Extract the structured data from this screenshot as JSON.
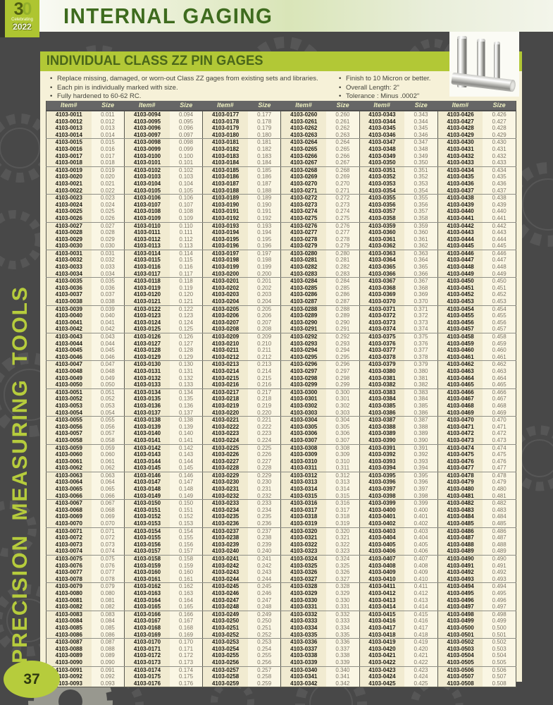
{
  "header": {
    "title": "INTERNAL GAGING",
    "logo": {
      "number_3": "3",
      "number_0": "0",
      "caption": "Celebrating",
      "year": "2022"
    }
  },
  "sidebar": {
    "vertical_text": "PRECISION MEASURING TOOLS",
    "page_number": "37"
  },
  "section": {
    "title": "INDIVIDUAL CLASS ZZ PIN GAGES",
    "bullets_left": [
      "Replace missing, damaged, or worn-out Class ZZ gages from existing sets and libraries.",
      "Each pin is individually marked with size.",
      "Fully hardened to 60-62 RC."
    ],
    "bullets_right": [
      "Finish to 10 Micron or better.",
      "Overall Length: 2\"",
      "Tolerance : Minus .0002\""
    ]
  },
  "colors": {
    "accent_green": "#b2c836",
    "dark_green_text": "#4a661a",
    "title_green": "#3e6b1e",
    "page_background": "#484848",
    "panel_background": "#f6f1d8",
    "table_header_gray": "#666666",
    "item_cell": "#f1ebd1",
    "size_cell": "#faf6e4",
    "sidebar_green": "#b6cc3c"
  },
  "table": {
    "item_header": "Item#",
    "size_header": "Size",
    "group_size": 4,
    "columns": [
      [
        "4103-0011|0.011",
        "4103-0012|0.012",
        "4103-0013|0.013",
        "4103-0014|0.014",
        "4103-0015|0.015",
        "4103-0016|0.016",
        "4103-0017|0.017",
        "4103-0018|0.018",
        "4103-0019|0.019",
        "4103-0020|0.020",
        "4103-0021|0.021",
        "4103-0022|0.022",
        "4103-0023|0.023",
        "4103-0024|0.024",
        "4103-0025|0.025",
        "4103-0026|0.026",
        "4103-0027|0.027",
        "4103-0028|0.028",
        "4103-0029|0.029",
        "4103-0030|0.030",
        "4103-0031|0.031",
        "4103-0032|0.032",
        "4103-0033|0.033",
        "4103-0034|0.034",
        "4103-0035|0.035",
        "4103-0036|0.036",
        "4103-0037|0.037",
        "4103-0038|0.038",
        "4103-0039|0.039",
        "4103-0040|0.040",
        "4103-0041|0.041",
        "4103-0042|0.042",
        "4103-0043|0.043",
        "4103-0044|0.044",
        "4103-0045|0.045",
        "4103-0046|0.046",
        "4103-0047|0.047",
        "4103-0048|0.048",
        "4103-0049|0.049",
        "4103-0050|0.050",
        "4103-0051|0.051",
        "4103-0052|0.052",
        "4103-0053|0.053",
        "4103-0054|0.054",
        "4103-0055|0.055",
        "4103-0056|0.056",
        "4103-0057|0.057",
        "4103-0058|0.058",
        "4103-0059|0.059",
        "4103-0060|0.060",
        "4103-0061|0.061",
        "4103-0062|0.062",
        "4103-0063|0.063",
        "4103-0064|0.064",
        "4103-0065|0.065",
        "4103-0066|0.066",
        "4103-0067|0.067",
        "4103-0068|0.068",
        "4103-0069|0.069",
        "4103-0070|0.070",
        "4103-0071|0.071",
        "4103-0072|0.072",
        "4103-0073|0.073",
        "4103-0074|0.074",
        "4103-0075|0.075",
        "4103-0076|0.076",
        "4103-0077|0.077",
        "4103-0078|0.078",
        "4103-0079|0.079",
        "4103-0080|0.080",
        "4103-0081|0.081",
        "4103-0082|0.082",
        "4103-0083|0.083",
        "4103-0084|0.084",
        "4103-0085|0.085",
        "4103-0086|0.086",
        "4103-0087|0.087",
        "4103-0088|0.088",
        "4103-0089|0.089",
        "4103-0090|0.090",
        "4103-0091|0.091",
        "4103-0092|0.092",
        "4103-0093|0.093"
      ],
      [
        "4103-0094|0.094",
        "4103-0095|0.095",
        "4103-0096|0.096",
        "4103-0097|0.097",
        "4103-0098|0.098",
        "4103-0099|0.099",
        "4103-0100|0.100",
        "4103-0101|0.101",
        "4103-0102|0.102",
        "4103-0103|0.103",
        "4103-0104|0.104",
        "4103-0105|0.105",
        "4103-0106|0.106",
        "4103-0107|0.107",
        "4103-0108|0.108",
        "4103-0109|0.109",
        "4103-0110|0.110",
        "4103-0111|0.111",
        "4103-0112|0.112",
        "4103-0113|0.113",
        "4103-0114|0.114",
        "4103-0115|0.115",
        "4103-0116|0.116",
        "4103-0117|0.117",
        "4103-0118|0.118",
        "4103-0119|0.119",
        "4103-0120|0.120",
        "4103-0121|0.121",
        "4103-0122|0.122",
        "4103-0123|0.123",
        "4103-0124|0.124",
        "4103-0125|0.125",
        "4103-0126|0.126",
        "4103-0127|0.127",
        "4103-0128|0.128",
        "4103-0129|0.129",
        "4103-0130|0.130",
        "4103-0131|0.131",
        "4103-0132|0.132",
        "4103-0133|0.133",
        "4103-0134|0.134",
        "4103-0135|0.135",
        "4103-0136|0.136",
        "4103-0137|0.137",
        "4103-0138|0.138",
        "4103-0139|0.139",
        "4103-0140|0.140",
        "4103-0141|0.141",
        "4103-0142|0.142",
        "4103-0143|0.143",
        "4103-0144|0.144",
        "4103-0145|0.145",
        "4103-0146|0.146",
        "4103-0147|0.147",
        "4103-0148|0.148",
        "4103-0149|0.149",
        "4103-0150|0.150",
        "4103-0151|0.151",
        "4103-0152|0.152",
        "4103-0153|0.153",
        "4103-0154|0.154",
        "4103-0155|0.155",
        "4103-0156|0.156",
        "4103-0157|0.157",
        "4103-0158|0.158",
        "4103-0159|0.159",
        "4103-0160|0.160",
        "4103-0161|0.161",
        "4103-0162|0.162",
        "4103-0163|0.163",
        "4103-0164|0.164",
        "4103-0165|0.165",
        "4103-0166|0.166",
        "4103-0167|0.167",
        "4103-0168|0.168",
        "4103-0169|0.169",
        "4103-0170|0.170",
        "4103-0171|0.171",
        "4103-0172|0.172",
        "4103-0173|0.173",
        "4103-0174|0.174",
        "4103-0175|0.175",
        "4103-0176|0.176"
      ],
      [
        "4103-0177|0.177",
        "4103-0178|0.178",
        "4103-0179|0.179",
        "4103-0180|0.180",
        "4103-0181|0.181",
        "4103-0182|0.182",
        "4103-0183|0.183",
        "4103-0184|0.184",
        "4103-0185|0.185",
        "4103-0186|0.186",
        "4103-0187|0.187",
        "4103-0188|0.188",
        "4103-0189|0.189",
        "4103-0190|0.190",
        "4103-0191|0.191",
        "4103-0192|0.192",
        "4103-0193|0.193",
        "4103-0194|0.194",
        "4103-0195|0.195",
        "4103-0196|0.196",
        "4103-0197|0.197",
        "4103-0198|0.198",
        "4103-0199|0.199",
        "4103-0200|0.200",
        "4103-0201|0.201",
        "4103-0202|0.202",
        "4103-0203|0.203",
        "4103-0204|0.204",
        "4103-0205|0.205",
        "4103-0206|0.206",
        "4103-0207|0.207",
        "4103-0208|0.208",
        "4103-0209|0.209",
        "4103-0210|0.210",
        "4103-0211|0.211",
        "4103-0212|0.212",
        "4103-0213|0.213",
        "4103-0214|0.214",
        "4103-0215|0.215",
        "4103-0216|0.216",
        "4103-0217|0.217",
        "4103-0218|0.218",
        "4103-0219|0.219",
        "4103-0220|0.220",
        "4103-0221|0.221",
        "4103-0222|0.222",
        "4103-0223|0.223",
        "4103-0224|0.224",
        "4103-0225|0.225",
        "4103-0226|0.226",
        "4103-0227|0.227",
        "4103-0228|0.228",
        "4103-0229|0.229",
        "4103-0230|0.230",
        "4103-0231|0.231",
        "4103-0232|0.232",
        "4103-0233|0.233",
        "4103-0234|0.234",
        "4103-0235|0.235",
        "4103-0236|0.236",
        "4103-0237|0.237",
        "4103-0238|0.238",
        "4103-0239|0.239",
        "4103-0240|0.240",
        "4103-0241|0.241",
        "4103-0242|0.242",
        "4103-0243|0.243",
        "4103-0244|0.244",
        "4103-0245|0.245",
        "4103-0246|0.246",
        "4103-0247|0.247",
        "4103-0248|0.248",
        "4103-0249|0.249",
        "4103-0250|0.250",
        "4103-0251|0.251",
        "4103-0252|0.252",
        "4103-0253|0.253",
        "4103-0254|0.254",
        "4103-0255|0.255",
        "4103-0256|0.256",
        "4103-0257|0.257",
        "4103-0258|0.258",
        "4103-0259|0.259"
      ],
      [
        "4103-0260|0.260",
        "4103-0261|0.261",
        "4103-0262|0.262",
        "4103-0263|0.263",
        "4103-0264|0.264",
        "4103-0265|0.265",
        "4103-0266|0.266",
        "4103-0267|0.267",
        "4103-0268|0.268",
        "4103-0269|0.269",
        "4103-0270|0.270",
        "4103-0271|0.271",
        "4103-0272|0.272",
        "4103-0273|0.273",
        "4103-0274|0.274",
        "4103-0275|0.275",
        "4103-0276|0.276",
        "4103-0277|0.277",
        "4103-0278|0.278",
        "4103-0279|0.279",
        "4103-0280|0.280",
        "4103-0281|0.281",
        "4103-0282|0.282",
        "4103-0283|0.283",
        "4103-0284|0.284",
        "4103-0285|0.285",
        "4103-0286|0.286",
        "4103-0287|0.287",
        "4103-0288|0.288",
        "4103-0289|0.289",
        "4103-0290|0.290",
        "4103-0291|0.291",
        "4103-0292|0.292",
        "4103-0293|0.293",
        "4103-0294|0.294",
        "4103-0295|0.295",
        "4103-0296|0.296",
        "4103-0297|0.297",
        "4103-0298|0.298",
        "4103-0299|0.299",
        "4103-0300|0.300",
        "4103-0301|0.301",
        "4103-0302|0.302",
        "4103-0303|0.303",
        "4103-0304|0.304",
        "4103-0305|0.305",
        "4103-0306|0.306",
        "4103-0307|0.307",
        "4103-0308|0.308",
        "4103-0309|0.309",
        "4103-0310|0.310",
        "4103-0311|0.311",
        "4103-0312|0.312",
        "4103-0313|0.313",
        "4103-0314|0.314",
        "4103-0315|0.315",
        "4103-0316|0.316",
        "4103-0317|0.317",
        "4103-0318|0.318",
        "4103-0319|0.319",
        "4103-0320|0.320",
        "4103-0321|0.321",
        "4103-0322|0.322",
        "4103-0323|0.323",
        "4103-0324|0.324",
        "4103-0325|0.325",
        "4103-0326|0.326",
        "4103-0327|0.327",
        "4103-0328|0.328",
        "4103-0329|0.329",
        "4103-0330|0.330",
        "4103-0331|0.331",
        "4103-0332|0.332",
        "4103-0333|0.333",
        "4103-0334|0.334",
        "4103-0335|0.335",
        "4103-0336|0.336",
        "4103-0337|0.337",
        "4103-0338|0.338",
        "4103-0339|0.339",
        "4103-0340|0.340",
        "4103-0341|0.341",
        "4103-0342|0.342"
      ],
      [
        "4103-0343|0.343",
        "4103-0344|0.344",
        "4103-0345|0.345",
        "4103-0346|0.346",
        "4103-0347|0.347",
        "4103-0348|0.348",
        "4103-0349|0.349",
        "4103-0350|0.350",
        "4103-0351|0.351",
        "4103-0352|0.352",
        "4103-0353|0.353",
        "4103-0354|0.354",
        "4103-0355|0.355",
        "4103-0356|0.356",
        "4103-0357|0.357",
        "4103-0358|0.358",
        "4103-0359|0.359",
        "4103-0360|0.360",
        "4103-0361|0.361",
        "4103-0362|0.362",
        "4103-0363|0.363",
        "4103-0364|0.364",
        "4103-0365|0.365",
        "4103-0366|0.366",
        "4103-0367|0.367",
        "4103-0368|0.368",
        "4103-0369|0.369",
        "4103-0370|0.370",
        "4103-0371|0.371",
        "4103-0372|0.372",
        "4103-0373|0.373",
        "4103-0374|0.374",
        "4103-0375|0.375",
        "4103-0376|0.376",
        "4103-0377|0.377",
        "4103-0378|0.378",
        "4103-0379|0.379",
        "4103-0380|0.380",
        "4103-0381|0.381",
        "4103-0382|0.382",
        "4103-0383|0.383",
        "4103-0384|0.384",
        "4103-0385|0.385",
        "4103-0386|0.386",
        "4103-0387|0.387",
        "4103-0388|0.388",
        "4103-0389|0.389",
        "4103-0390|0.390",
        "4103-0391|0.391",
        "4103-0392|0.392",
        "4103-0393|0.393",
        "4103-0394|0.394",
        "4103-0395|0.395",
        "4103-0396|0.396",
        "4103-0397|0.397",
        "4103-0398|0.398",
        "4103-0399|0.399",
        "4103-0400|0.400",
        "4103-0401|0.401",
        "4103-0402|0.402",
        "4103-0403|0.403",
        "4103-0404|0.404",
        "4103-0405|0.405",
        "4103-0406|0.406",
        "4103-0407|0.407",
        "4103-0408|0.408",
        "4103-0409|0.409",
        "4103-0410|0.410",
        "4103-0411|0.411",
        "4103-0412|0.412",
        "4103-0413|0.413",
        "4103-0414|0.414",
        "4103-0415|0.415",
        "4103-0416|0.416",
        "4103-0417|0.417",
        "4103-0418|0.418",
        "4103-0419|0.419",
        "4103-0420|0.420",
        "4103-0421|0.421",
        "4103-0422|0.422",
        "4103-0423|0.423",
        "4103-0424|0.424",
        "4103-0425|0.425"
      ],
      [
        "4103-0426|0.426",
        "4103-0427|0.427",
        "4103-0428|0.428",
        "4103-0429|0.429",
        "4103-0430|0.430",
        "4103-0431|0.431",
        "4103-0432|0.432",
        "4103-0433|0.433",
        "4103-0434|0.434",
        "4103-0435|0.435",
        "4103-0436|0.436",
        "4103-0437|0.437",
        "4103-0438|0.438",
        "4103-0439|0.439",
        "4103-0440|0.440",
        "4103-0441|0.441",
        "4103-0442|0.442",
        "4103-0443|0.443",
        "4103-0444|0.444",
        "4103-0445|0.445",
        "4103-0446|0.446",
        "4103-0447|0.447",
        "4103-0448|0.448",
        "4103-0449|0.449",
        "4103-0450|0.450",
        "4103-0451|0.451",
        "4103-0452|0.452",
        "4103-0453|0.453",
        "4103-0454|0.454",
        "4103-0455|0.455",
        "4103-0456|0.456",
        "4103-0457|0.457",
        "4103-0458|0.458",
        "4103-0459|0.459",
        "4103-0460|0.460",
        "4103-0461|0.461",
        "4103-0462|0.462",
        "4103-0463|0.463",
        "4103-0464|0.464",
        "4103-0465|0.465",
        "4103-0466|0.466",
        "4103-0467|0.467",
        "4103-0468|0.468",
        "4103-0469|0.469",
        "4103-0470|0.470",
        "4103-0471|0.471",
        "4103-0472|0.472",
        "4103-0473|0.473",
        "4103-0474|0.474",
        "4103-0475|0.475",
        "4103-0476|0.476",
        "4103-0477|0.477",
        "4103-0478|0.478",
        "4103-0479|0.479",
        "4103-0480|0.480",
        "4103-0481|0.481",
        "4103-0482|0.482",
        "4103-0483|0.483",
        "4103-0484|0.484",
        "4103-0485|0.485",
        "4103-0486|0.486",
        "4103-0487|0.487",
        "4103-0488|0.488",
        "4103-0489|0.489",
        "4103-0490|0.490",
        "4103-0491|0.491",
        "4103-0492|0.492",
        "4103-0493|0.493",
        "4103-0494|0.494",
        "4103-0495|0.495",
        "4103-0496|0.496",
        "4103-0497|0.497",
        "4103-0498|0.498",
        "4103-0499|0.499",
        "4103-0500|0.500",
        "4103-0501|0.501",
        "4103-0502|0.502",
        "4103-0503|0.503",
        "4103-0504|0.504",
        "4103-0505|0.505",
        "4103-0506|0.506",
        "4103-0507|0.507",
        "4103-0508|0.508"
      ]
    ]
  }
}
